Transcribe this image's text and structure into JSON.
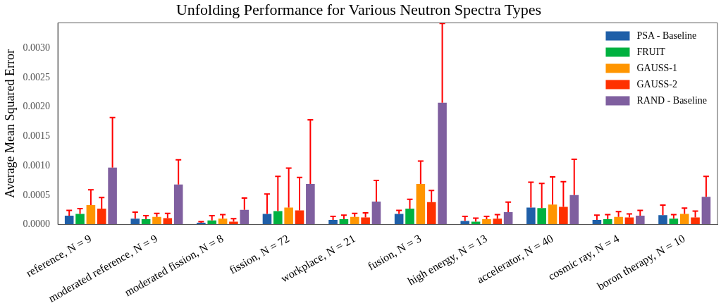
{
  "chart_data": {
    "type": "bar",
    "title": "Unfolding Performance for Various Neutron Spectra Types",
    "ylabel": "Average Mean Squared Error",
    "categories": [
      "reference, N = 9",
      "moderated reference, N = 9",
      "moderated fission, N = 8",
      "fission, N = 72",
      "workplace, N = 21",
      "fusion, N = 3",
      "high energy, N = 13",
      "accelerator, N = 40",
      "cosmic ray, N = 4",
      "boron therapy, N = 10"
    ],
    "series": [
      {
        "name": "PSA - Baseline",
        "color": "#1f5fa8",
        "values": [
          0.00015,
          0.0001,
          3e-05,
          0.00018,
          8e-05,
          0.00018,
          6e-05,
          0.00029,
          8e-05,
          0.00016
        ],
        "errors": [
          [
            0.00015,
            0.00024
          ],
          [
            0.0001,
            0.00021
          ],
          [
            3e-05,
            5e-05
          ],
          [
            0.00018,
            0.00052
          ],
          [
            8e-05,
            0.00014
          ],
          [
            0.00018,
            0.00024
          ],
          [
            6e-05,
            0.00014
          ],
          [
            0.00029,
            0.00072
          ],
          [
            8e-05,
            0.00016
          ],
          [
            0.00016,
            0.00033
          ]
        ]
      },
      {
        "name": "FRUIT",
        "color": "#00b140",
        "values": [
          0.00018,
          9e-05,
          7e-05,
          0.00023,
          9e-05,
          0.00027,
          5e-05,
          0.00028,
          9e-05,
          0.0001
        ],
        "errors": [
          [
            0.00018,
            0.00027
          ],
          [
            9e-05,
            0.00015
          ],
          [
            7e-05,
            0.00015
          ],
          [
            0.00023,
            0.00082
          ],
          [
            9e-05,
            0.00016
          ],
          [
            0.00027,
            0.00043
          ],
          [
            5e-05,
            0.00011
          ],
          [
            0.00028,
            0.0007
          ],
          [
            9e-05,
            0.00017
          ],
          [
            0.0001,
            0.00017
          ]
        ]
      },
      {
        "name": "GAUSS-1",
        "color": "#ff9500",
        "values": [
          0.00033,
          0.00013,
          0.0001,
          0.00029,
          0.00013,
          0.00069,
          9e-05,
          0.00034,
          0.00013,
          0.00018
        ],
        "errors": [
          [
            0.00033,
            0.00059
          ],
          [
            0.00013,
            0.00019
          ],
          [
            0.0001,
            0.00017
          ],
          [
            0.00029,
            0.00096
          ],
          [
            0.00013,
            0.00019
          ],
          [
            0.00069,
            0.00108
          ],
          [
            9e-05,
            0.00014
          ],
          [
            0.00034,
            0.00081
          ],
          [
            0.00013,
            0.00022
          ],
          [
            0.00018,
            0.00028
          ]
        ]
      },
      {
        "name": "GAUSS-2",
        "color": "#ff3000",
        "values": [
          0.00027,
          0.00011,
          5e-05,
          0.00024,
          0.00012,
          0.00038,
          0.0001,
          0.0003,
          0.00012,
          0.00012
        ],
        "errors": [
          [
            0.00027,
            0.00046
          ],
          [
            0.00011,
            0.00019
          ],
          [
            5e-05,
            0.0001
          ],
          [
            0.00024,
            0.0008
          ],
          [
            0.00012,
            0.0002
          ],
          [
            0.00038,
            0.00058
          ],
          [
            0.0001,
            0.00017
          ],
          [
            0.0003,
            0.00073
          ],
          [
            0.00012,
            0.00018
          ],
          [
            0.00012,
            0.00023
          ]
        ]
      },
      {
        "name": "RAND - Baseline",
        "color": "#7f5f9f",
        "values": [
          0.00097,
          0.00068,
          0.00025,
          0.00069,
          0.00039,
          0.00207,
          0.00021,
          0.0005,
          0.00015,
          0.00047
        ],
        "errors": [
          [
            0.00097,
            0.00182
          ],
          [
            0.00068,
            0.0011
          ],
          [
            0.00025,
            0.00045
          ],
          [
            0.00069,
            0.00178
          ],
          [
            0.00039,
            0.00075
          ],
          [
            0.00207,
            0.00342
          ],
          [
            0.00021,
            0.00038
          ],
          [
            0.0005,
            0.00111
          ],
          [
            0.00015,
            0.00024
          ],
          [
            0.00047,
            0.00082
          ]
        ]
      }
    ],
    "ylim": [
      0,
      0.00343
    ],
    "yticks": [
      {
        "value": 0,
        "label": "0.0000"
      },
      {
        "value": 0.0005,
        "label": "0.0005"
      },
      {
        "value": 0.001,
        "label": "0.0010"
      },
      {
        "value": 0.0015,
        "label": "0.0015"
      },
      {
        "value": 0.002,
        "label": "0.0020"
      },
      {
        "value": 0.0025,
        "label": "0.0025"
      },
      {
        "value": 0.003,
        "label": "0.0030"
      }
    ],
    "grid": false,
    "legend": "top right"
  }
}
